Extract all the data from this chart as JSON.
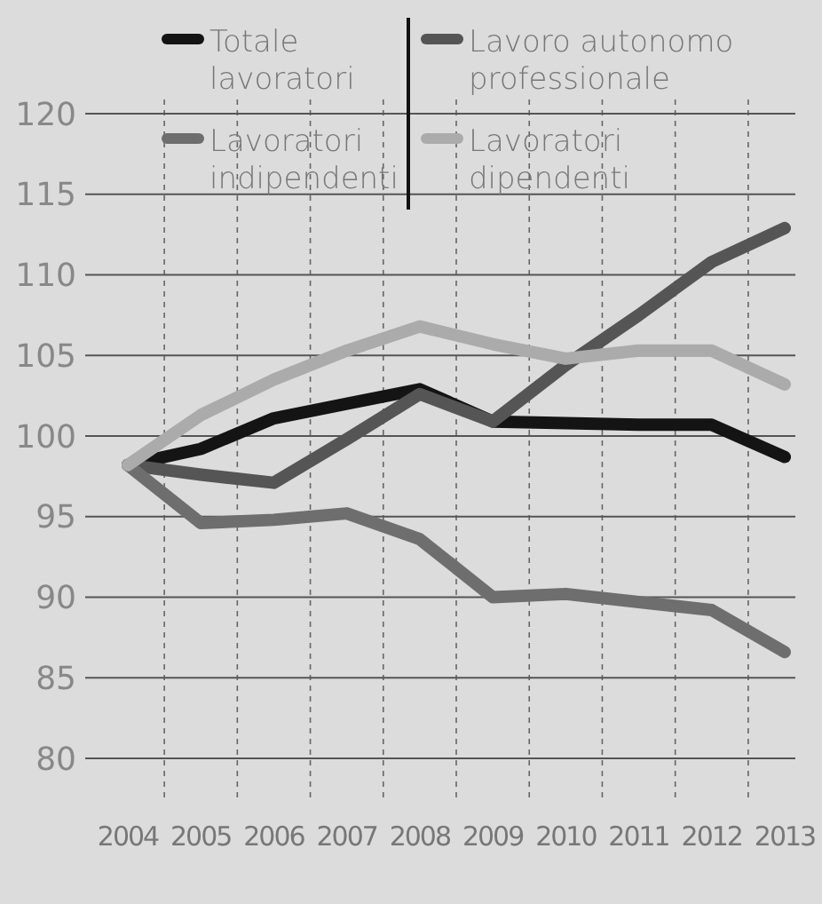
{
  "chart_data": {
    "type": "line",
    "categories": [
      "2004",
      "2005",
      "2006",
      "2007",
      "2008",
      "2009",
      "2010",
      "2011",
      "2012",
      "2013"
    ],
    "series": [
      {
        "name": "Totale lavoratori",
        "color": "#141414",
        "values": [
          98.2,
          99.2,
          101.1,
          102.0,
          102.9,
          100.9,
          100.8,
          100.7,
          100.7,
          98.7
        ]
      },
      {
        "name": "Lavoro autonomo professionale",
        "color": "#555555",
        "values": [
          98.2,
          97.6,
          97.1,
          99.8,
          102.6,
          100.9,
          104.4,
          107.5,
          110.8,
          112.9
        ]
      },
      {
        "name": "Lavoratori indipendenti",
        "color": "#6e6e6e",
        "values": [
          98.2,
          94.6,
          94.8,
          95.2,
          93.6,
          90.0,
          90.2,
          89.7,
          89.2,
          86.6
        ]
      },
      {
        "name": "Lavoratori dipendenti",
        "color": "#ababab",
        "values": [
          98.2,
          101.3,
          103.5,
          105.3,
          106.8,
          105.7,
          104.8,
          105.3,
          105.3,
          103.2
        ]
      }
    ],
    "ylim": [
      80,
      120
    ],
    "yticks": [
      80,
      85,
      90,
      95,
      100,
      105,
      110,
      115,
      120
    ],
    "grid": true,
    "legend": "top",
    "marker": "none",
    "line_style": "solid"
  }
}
